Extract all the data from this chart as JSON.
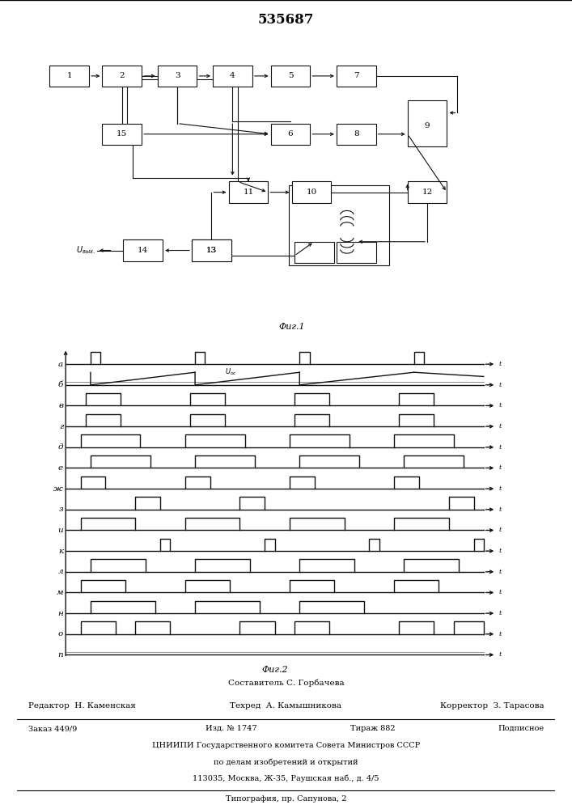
{
  "title": "535687",
  "fig1_caption": "Фиг.1",
  "fig2_caption": "Фиг.2",
  "footer_line1": "Составитель С. Горбачева",
  "footer_line2_left": "Редактор  Н. Каменская",
  "footer_line2_mid": "Техред  А. Камышникова",
  "footer_line2_right": "Корректор  З. Тарасова",
  "footer_line3_1": "Заказ 449/9",
  "footer_line3_2": "Изд. № 1747",
  "footer_line3_3": "Тираж 882",
  "footer_line3_4": "Подписное",
  "footer_line4": "ЦНИИПИ Государственного комитета Совета Министров СССР",
  "footer_line5": "по делам изобретений и открытий",
  "footer_line6": "113035, Москва, Ж-35, Раушская наб., д. 4/5",
  "footer_line7": "Типография, пр. Сапунова, 2",
  "bg_color": "#ffffff",
  "line_color": "#111111",
  "waveform_labels": [
    "а",
    "б",
    "в",
    "г",
    "д",
    "е",
    "ж",
    "з",
    "и",
    "к",
    "л",
    "м",
    "н",
    "о",
    "п"
  ]
}
